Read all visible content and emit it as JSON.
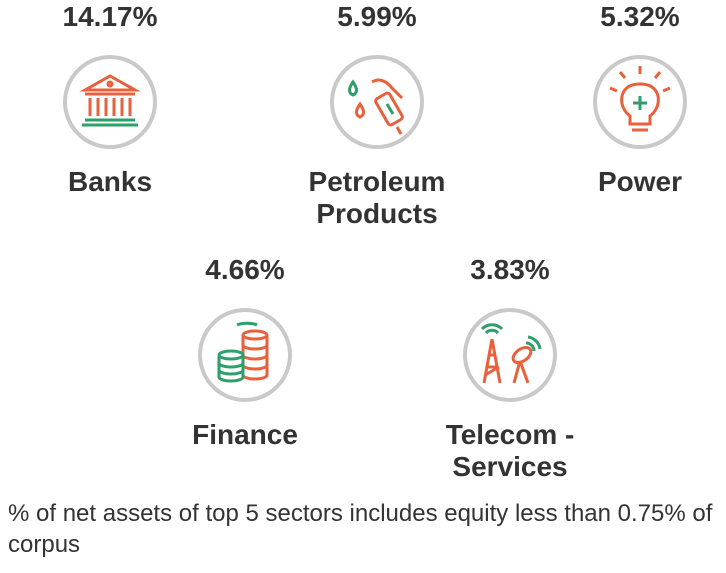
{
  "sectors": [
    {
      "value": "14.17%",
      "label": "Banks"
    },
    {
      "value": "5.99%",
      "label": "Petroleum Products"
    },
    {
      "value": "5.32%",
      "label": "Power"
    },
    {
      "value": "4.66%",
      "label": "Finance"
    },
    {
      "value": "3.83%",
      "label": "Telecom - Services"
    }
  ],
  "footnote": "% of net assets of top 5 sectors includes equity less than 0.75% of corpus"
}
